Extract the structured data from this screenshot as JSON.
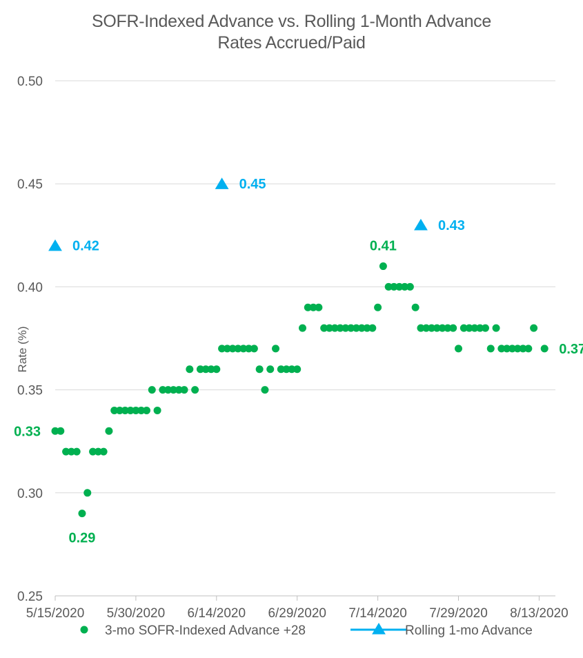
{
  "chart_data": {
    "type": "scatter",
    "title": "SOFR-Indexed Advance vs. Rolling 1-Month Advance",
    "subtitle": "Rates Accrued/Paid",
    "xlabel": "",
    "ylabel": "Rate (%)",
    "ylim": [
      0.25,
      0.5
    ],
    "yticks": [
      "0.25",
      "0.30",
      "0.35",
      "0.40",
      "0.45",
      "0.50"
    ],
    "xlim": [
      "5/15/2020",
      "8/15/2020"
    ],
    "xticks": [
      "5/15/2020",
      "5/30/2020",
      "6/14/2020",
      "6/29/2020",
      "7/14/2020",
      "7/29/2020",
      "8/13/2020"
    ],
    "grid": "horizontal",
    "legend_position": "bottom",
    "series": [
      {
        "name": "3-mo SOFR-Indexed Advance +28",
        "color": "#00b050",
        "marker": "circle",
        "points": [
          [
            "5/15/2020",
            0.33
          ],
          [
            "5/16/2020",
            0.33
          ],
          [
            "5/17/2020",
            0.32
          ],
          [
            "5/18/2020",
            0.32
          ],
          [
            "5/19/2020",
            0.32
          ],
          [
            "5/20/2020",
            0.29
          ],
          [
            "5/21/2020",
            0.3
          ],
          [
            "5/22/2020",
            0.32
          ],
          [
            "5/23/2020",
            0.32
          ],
          [
            "5/24/2020",
            0.32
          ],
          [
            "5/25/2020",
            0.33
          ],
          [
            "5/26/2020",
            0.34
          ],
          [
            "5/27/2020",
            0.34
          ],
          [
            "5/28/2020",
            0.34
          ],
          [
            "5/29/2020",
            0.34
          ],
          [
            "5/30/2020",
            0.34
          ],
          [
            "5/31/2020",
            0.34
          ],
          [
            "6/1/2020",
            0.34
          ],
          [
            "6/2/2020",
            0.35
          ],
          [
            "6/3/2020",
            0.34
          ],
          [
            "6/4/2020",
            0.35
          ],
          [
            "6/5/2020",
            0.35
          ],
          [
            "6/6/2020",
            0.35
          ],
          [
            "6/7/2020",
            0.35
          ],
          [
            "6/8/2020",
            0.35
          ],
          [
            "6/9/2020",
            0.36
          ],
          [
            "6/10/2020",
            0.35
          ],
          [
            "6/11/2020",
            0.36
          ],
          [
            "6/12/2020",
            0.36
          ],
          [
            "6/13/2020",
            0.36
          ],
          [
            "6/14/2020",
            0.36
          ],
          [
            "6/15/2020",
            0.37
          ],
          [
            "6/16/2020",
            0.37
          ],
          [
            "6/17/2020",
            0.37
          ],
          [
            "6/18/2020",
            0.37
          ],
          [
            "6/19/2020",
            0.37
          ],
          [
            "6/20/2020",
            0.37
          ],
          [
            "6/21/2020",
            0.37
          ],
          [
            "6/22/2020",
            0.36
          ],
          [
            "6/23/2020",
            0.35
          ],
          [
            "6/24/2020",
            0.36
          ],
          [
            "6/25/2020",
            0.37
          ],
          [
            "6/26/2020",
            0.36
          ],
          [
            "6/27/2020",
            0.36
          ],
          [
            "6/28/2020",
            0.36
          ],
          [
            "6/29/2020",
            0.36
          ],
          [
            "6/30/2020",
            0.38
          ],
          [
            "7/1/2020",
            0.39
          ],
          [
            "7/2/2020",
            0.39
          ],
          [
            "7/3/2020",
            0.39
          ],
          [
            "7/4/2020",
            0.38
          ],
          [
            "7/5/2020",
            0.38
          ],
          [
            "7/6/2020",
            0.38
          ],
          [
            "7/7/2020",
            0.38
          ],
          [
            "7/8/2020",
            0.38
          ],
          [
            "7/9/2020",
            0.38
          ],
          [
            "7/10/2020",
            0.38
          ],
          [
            "7/11/2020",
            0.38
          ],
          [
            "7/12/2020",
            0.38
          ],
          [
            "7/13/2020",
            0.38
          ],
          [
            "7/14/2020",
            0.39
          ],
          [
            "7/15/2020",
            0.41
          ],
          [
            "7/16/2020",
            0.4
          ],
          [
            "7/17/2020",
            0.4
          ],
          [
            "7/18/2020",
            0.4
          ],
          [
            "7/19/2020",
            0.4
          ],
          [
            "7/20/2020",
            0.4
          ],
          [
            "7/21/2020",
            0.39
          ],
          [
            "7/22/2020",
            0.38
          ],
          [
            "7/23/2020",
            0.38
          ],
          [
            "7/24/2020",
            0.38
          ],
          [
            "7/25/2020",
            0.38
          ],
          [
            "7/26/2020",
            0.38
          ],
          [
            "7/27/2020",
            0.38
          ],
          [
            "7/28/2020",
            0.38
          ],
          [
            "7/29/2020",
            0.37
          ],
          [
            "7/30/2020",
            0.38
          ],
          [
            "7/31/2020",
            0.38
          ],
          [
            "8/1/2020",
            0.38
          ],
          [
            "8/2/2020",
            0.38
          ],
          [
            "8/3/2020",
            0.38
          ],
          [
            "8/4/2020",
            0.37
          ],
          [
            "8/5/2020",
            0.38
          ],
          [
            "8/6/2020",
            0.37
          ],
          [
            "8/7/2020",
            0.37
          ],
          [
            "8/8/2020",
            0.37
          ],
          [
            "8/9/2020",
            0.37
          ],
          [
            "8/10/2020",
            0.37
          ],
          [
            "8/11/2020",
            0.37
          ],
          [
            "8/12/2020",
            0.38
          ],
          [
            "8/14/2020",
            0.37
          ]
        ]
      },
      {
        "name": "Rolling 1-mo Advance",
        "color": "#00b0f0",
        "marker": "triangle",
        "points": [
          [
            "5/15/2020",
            0.42
          ],
          [
            "6/15/2020",
            0.45
          ],
          [
            "7/22/2020",
            0.43
          ]
        ]
      }
    ],
    "annotations": [
      {
        "series": 1,
        "x": "5/15/2020",
        "y": 0.42,
        "text": "0.42",
        "pos": "right"
      },
      {
        "series": 1,
        "x": "6/15/2020",
        "y": 0.45,
        "text": "0.45",
        "pos": "right"
      },
      {
        "series": 1,
        "x": "7/22/2020",
        "y": 0.43,
        "text": "0.43",
        "pos": "right"
      },
      {
        "series": 0,
        "x": "5/15/2020",
        "y": 0.33,
        "text": "0.33",
        "pos": "left"
      },
      {
        "series": 0,
        "x": "5/20/2020",
        "y": 0.29,
        "text": "0.29",
        "pos": "below"
      },
      {
        "series": 0,
        "x": "7/15/2020",
        "y": 0.41,
        "text": "0.41",
        "pos": "above"
      },
      {
        "series": 0,
        "x": "8/14/2020",
        "y": 0.37,
        "text": "0.37",
        "pos": "right"
      }
    ]
  }
}
